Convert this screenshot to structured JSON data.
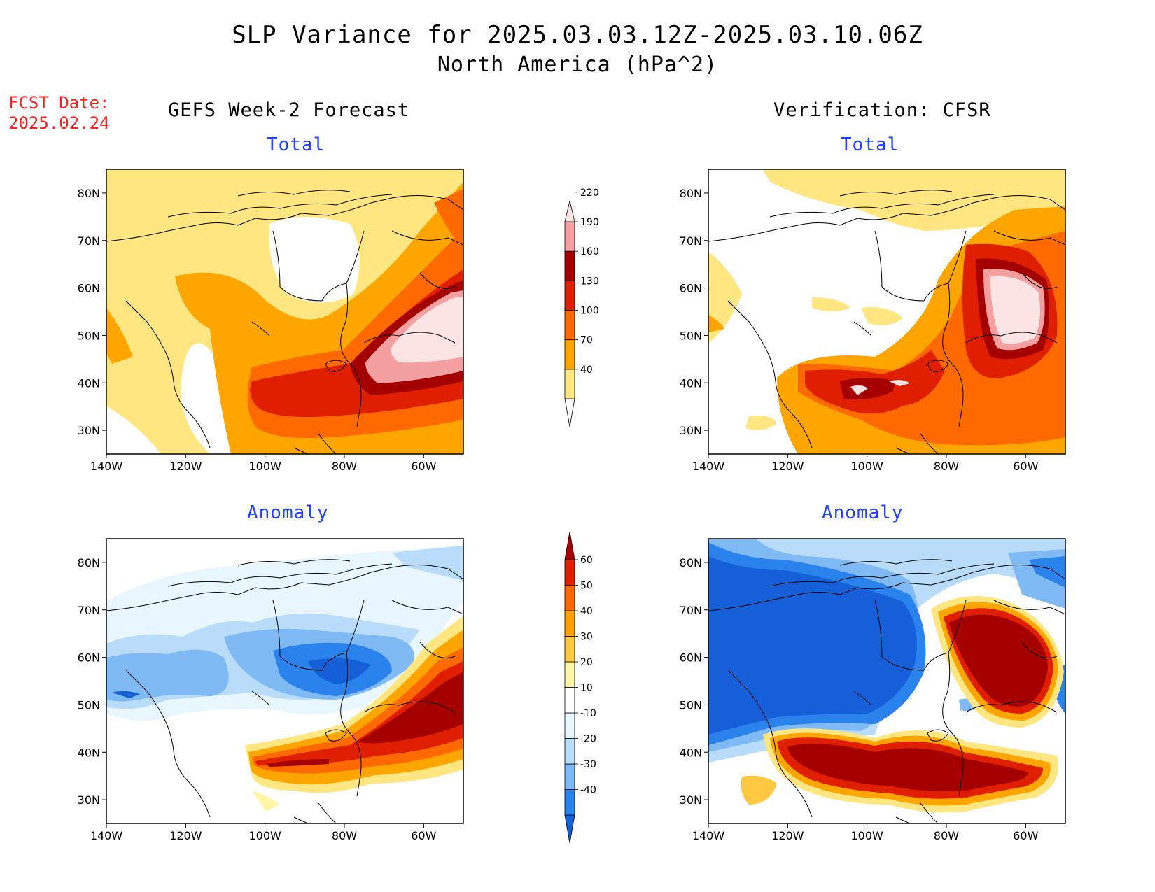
{
  "title": "SLP Variance for 2025.03.03.12Z-2025.03.10.06Z",
  "subtitle": "North America (hPa^2)",
  "fcst_date": {
    "label": "FCST Date:",
    "value": "2025.02.24"
  },
  "columns": {
    "left": "GEFS Week-2 Forecast",
    "right": "Verification: CFSR"
  },
  "panels": {
    "top_left": "Total",
    "top_right": "Total",
    "bottom_left": "Anomaly",
    "bottom_right": "Anomaly"
  },
  "axes": {
    "lon_labels": [
      "140W",
      "120W",
      "100W",
      "80W",
      "60W"
    ],
    "lon_values": [
      -140,
      -120,
      -100,
      -80,
      -60
    ],
    "lon_range": [
      -140,
      -50
    ],
    "lat_labels": [
      "30N",
      "40N",
      "50N",
      "60N",
      "70N",
      "80N"
    ],
    "lat_values": [
      30,
      40,
      50,
      60,
      70,
      80
    ],
    "lat_range": [
      25,
      85
    ]
  },
  "colorbars": {
    "total": {
      "levels": [
        "40",
        "70",
        "100",
        "130",
        "160",
        "190",
        "220"
      ],
      "colors": [
        "#ffffff",
        "#ffe680",
        "#ffa500",
        "#ff6a00",
        "#e01e00",
        "#a50000",
        "#f4a0a0",
        "#fde4e4"
      ]
    },
    "anomaly": {
      "levels": [
        "-40",
        "-30",
        "-20",
        "-10",
        "10",
        "20",
        "30",
        "40",
        "50",
        "60"
      ],
      "colors": [
        "#1560d8",
        "#2a82ec",
        "#7fbaf4",
        "#b8dcfa",
        "#e8f6ff",
        "#ffffff",
        "#fff6a8",
        "#ffc840",
        "#ffa000",
        "#ff6a00",
        "#e01e00",
        "#a50000"
      ]
    }
  }
}
